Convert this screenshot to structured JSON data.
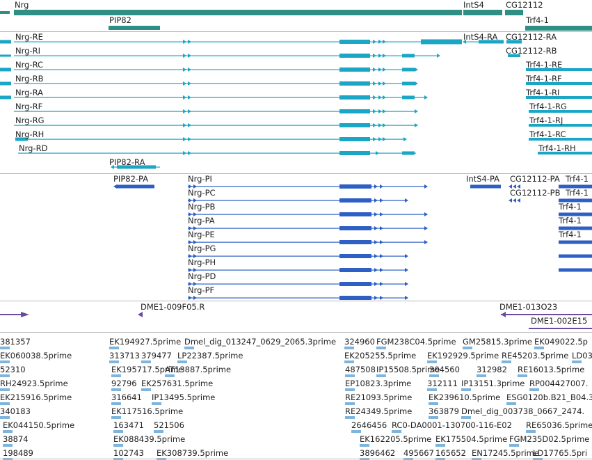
{
  "colors": {
    "gene": "#2f8f84",
    "mrna": "#1aa6c4",
    "protein": "#2d5fc4",
    "insertion": "#6a4aa0",
    "est": "#7fb4dc",
    "separator": "#b8b8b8"
  },
  "tracks": {
    "genes": {
      "items": [
        {
          "label": "Nrg"
        },
        {
          "label": "PIP82"
        },
        {
          "label": "IntS4"
        },
        {
          "label": "CG12112"
        },
        {
          "label": "Trf4-1"
        }
      ]
    },
    "transcripts": {
      "items": [
        {
          "label": "Nrg-RE"
        },
        {
          "label": "Nrg-RI"
        },
        {
          "label": "Nrg-RC"
        },
        {
          "label": "Nrg-RB"
        },
        {
          "label": "Nrg-RA"
        },
        {
          "label": "Nrg-RF"
        },
        {
          "label": "Nrg-RG"
        },
        {
          "label": "Nrg-RH"
        },
        {
          "label": "Nrg-RD"
        },
        {
          "label": "PIP82-RA"
        },
        {
          "label": "IntS4-RA"
        },
        {
          "label": "CG12112-RA"
        },
        {
          "label": "CG12112-RB"
        },
        {
          "label": "Trf4-1-RE"
        },
        {
          "label": "Trf4-1-RF"
        },
        {
          "label": "Trf4-1-RI"
        },
        {
          "label": "Trf4-1-RG"
        },
        {
          "label": "Trf4-1-RJ"
        },
        {
          "label": "Trf4-1-RC"
        },
        {
          "label": "Trf4-1-RH"
        }
      ]
    },
    "proteins": {
      "items": [
        {
          "label": "PIP82-PA"
        },
        {
          "label": "Nrg-PI"
        },
        {
          "label": "Nrg-PC"
        },
        {
          "label": "Nrg-PB"
        },
        {
          "label": "Nrg-PA"
        },
        {
          "label": "Nrg-PE"
        },
        {
          "label": "Nrg-PG"
        },
        {
          "label": "Nrg-PH"
        },
        {
          "label": "Nrg-PD"
        },
        {
          "label": "Nrg-PF"
        },
        {
          "label": "IntS4-PA"
        },
        {
          "label": "CG12112-PA"
        },
        {
          "label": "CG12112-PB"
        },
        {
          "label": "Trf4-1"
        },
        {
          "label": "Trf4-1"
        },
        {
          "label": "Trf4-1"
        },
        {
          "label": "Trf4-1"
        },
        {
          "label": "Trf4-1"
        }
      ]
    },
    "insertions": {
      "items": [
        {
          "label": "DME1-009F05.R"
        },
        {
          "label": "DME1-013O23"
        },
        {
          "label": "DME1-002E15"
        }
      ]
    },
    "ests": {
      "items": [
        {
          "label": "381357"
        },
        {
          "label": "EK194927.5prime"
        },
        {
          "label": "Dmel_dig_013247_0629_2065.3prime"
        },
        {
          "label": "324960"
        },
        {
          "label": "FGM238C04.5prime"
        },
        {
          "label": "GM25815.3prime"
        },
        {
          "label": "EK049022.5p"
        },
        {
          "label": "EK060038.5prime"
        },
        {
          "label": "313713"
        },
        {
          "label": "379477"
        },
        {
          "label": "LP22387.5prime"
        },
        {
          "label": "EK205255.5prime"
        },
        {
          "label": "EK192929.5prime"
        },
        {
          "label": "RE45203.5prime"
        },
        {
          "label": "LD03"
        },
        {
          "label": "52310"
        },
        {
          "label": "EK195717.5prime"
        },
        {
          "label": "AT13887.5prime"
        },
        {
          "label": "487508"
        },
        {
          "label": "IP15508.5prime"
        },
        {
          "label": "304560"
        },
        {
          "label": "312982"
        },
        {
          "label": "RE16013.5prime"
        },
        {
          "label": "RH24923.5prime"
        },
        {
          "label": "92796"
        },
        {
          "label": "EK257631.5prime"
        },
        {
          "label": "EP10823.3prime"
        },
        {
          "label": "312111"
        },
        {
          "label": "IP13151.3prime"
        },
        {
          "label": "RP004427007."
        },
        {
          "label": "EK215916.5prime"
        },
        {
          "label": "316641"
        },
        {
          "label": "IP13495.5prime"
        },
        {
          "label": "RE21093.5prime"
        },
        {
          "label": "EK239610.5prime"
        },
        {
          "label": "ESG0120b.B21_B04.3"
        },
        {
          "label": "340183"
        },
        {
          "label": "EK117516.5prime"
        },
        {
          "label": "RE24349.5prime"
        },
        {
          "label": "363879"
        },
        {
          "label": "Dmel_dig_003738_0667_2474."
        },
        {
          "label": "EK044150.5prime"
        },
        {
          "label": "163471"
        },
        {
          "label": "521506"
        },
        {
          "label": "2646456"
        },
        {
          "label": "RC0-DA0001-130700-116-E02"
        },
        {
          "label": "RE65036.5prime"
        },
        {
          "label": "38874"
        },
        {
          "label": "EK088439.5prime"
        },
        {
          "label": "EK162205.5prime"
        },
        {
          "label": "EK175504.5prime"
        },
        {
          "label": "FGM235D02.5prime"
        },
        {
          "label": "198489"
        },
        {
          "label": "102743"
        },
        {
          "label": "EK308739.5prime"
        },
        {
          "label": "3896462"
        },
        {
          "label": "495667"
        },
        {
          "label": "165652"
        },
        {
          "label": "EN17245.5prime"
        },
        {
          "label": "LD17765.5pri"
        }
      ]
    }
  }
}
